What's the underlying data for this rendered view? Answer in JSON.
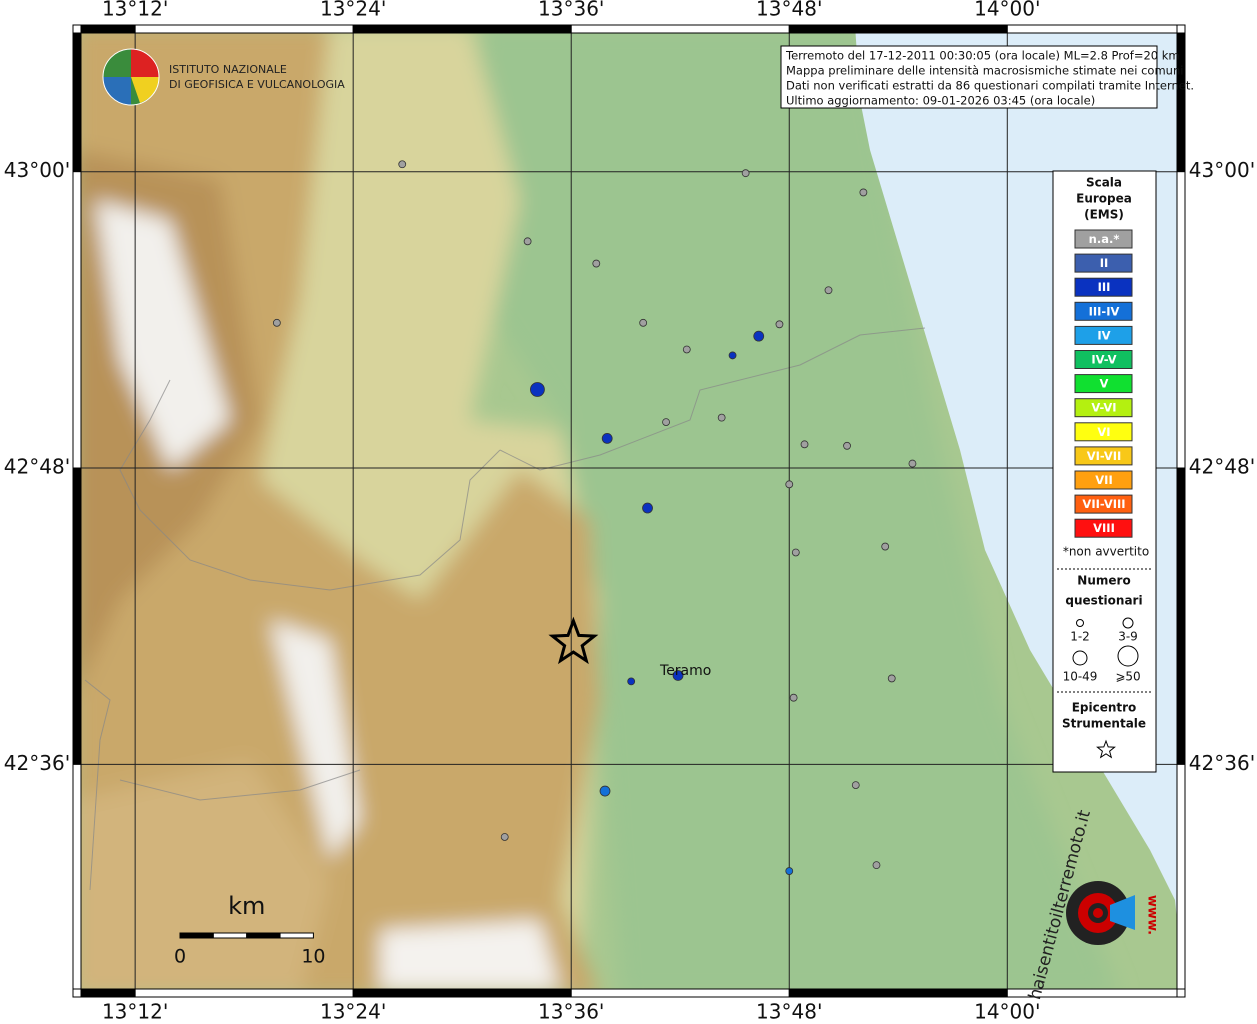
{
  "map": {
    "logo_text": [
      "ISTITUTO NAZIONALE",
      "DI GEOFISICA E VULCANOLOGIA"
    ],
    "info": [
      "Terremoto del 17-12-2011 00:30:05 (ora locale) ML=2.8 Prof=20 km",
      "Mappa preliminare delle intensità macrosismiche stimate nei comuni",
      "Dati non verificati estratti da 86 questionari compilati tramite Internet.",
      "Ultimo aggiornamento: 09-01-2026 03:45 (ora locale)"
    ],
    "lon_lim": [
      13.143,
      14.163
    ],
    "lat_lim": [
      42.443,
      43.099
    ],
    "lon_ticks": [
      {
        "value": 13.2,
        "label": "13°12'"
      },
      {
        "value": 13.4,
        "label": "13°24'"
      },
      {
        "value": 13.6,
        "label": "13°36'"
      },
      {
        "value": 13.8,
        "label": "13°48'"
      },
      {
        "value": 14.0,
        "label": "14°00'"
      }
    ],
    "lat_ticks": [
      {
        "value": 43.0,
        "label": "43°00'"
      },
      {
        "value": 42.8,
        "label": "42°48'"
      },
      {
        "value": 42.6,
        "label": "42°36'"
      }
    ],
    "legend": {
      "title": [
        "Scala",
        "Europea",
        "(EMS)"
      ],
      "classes": [
        {
          "label": "n.a.*",
          "color": "#a0a0a0"
        },
        {
          "label": "II",
          "color": "#3c5fae"
        },
        {
          "label": "III",
          "color": "#0a32c0"
        },
        {
          "label": "III-IV",
          "color": "#1470d8"
        },
        {
          "label": "IV",
          "color": "#1ea0e8"
        },
        {
          "label": "IV-V",
          "color": "#10c060"
        },
        {
          "label": "V",
          "color": "#10e030"
        },
        {
          "label": "V-VI",
          "color": "#b4f010"
        },
        {
          "label": "VI",
          "color": "#ffff10"
        },
        {
          "label": "VI-VII",
          "color": "#f8c818"
        },
        {
          "label": "VII",
          "color": "#ffa010"
        },
        {
          "label": "VII-VIII",
          "color": "#ff6010"
        },
        {
          "label": "VIII",
          "color": "#ff1010"
        }
      ],
      "note": "*non avvertito",
      "size_title": [
        "Numero",
        "questionari"
      ],
      "sizes": [
        "1-2",
        "3-9",
        "10-49",
        "⩾50"
      ],
      "epicenter_title": [
        "Epicentro",
        "Strumentale"
      ]
    },
    "points": [
      {
        "lon": 13.445,
        "lat": 43.005,
        "class": "n.a.*",
        "size": "1-2"
      },
      {
        "lon": 13.76,
        "lat": 42.999,
        "class": "n.a.*",
        "size": "1-2"
      },
      {
        "lon": 13.868,
        "lat": 42.986,
        "class": "n.a.*",
        "size": "1-2"
      },
      {
        "lon": 13.56,
        "lat": 42.953,
        "class": "n.a.*",
        "size": "1-2"
      },
      {
        "lon": 13.623,
        "lat": 42.938,
        "class": "n.a.*",
        "size": "1-2"
      },
      {
        "lon": 13.836,
        "lat": 42.92,
        "class": "n.a.*",
        "size": "1-2"
      },
      {
        "lon": 13.33,
        "lat": 42.898,
        "class": "n.a.*",
        "size": "1-2"
      },
      {
        "lon": 13.666,
        "lat": 42.898,
        "class": "n.a.*",
        "size": "1-2"
      },
      {
        "lon": 13.791,
        "lat": 42.897,
        "class": "n.a.*",
        "size": "1-2"
      },
      {
        "lon": 13.706,
        "lat": 42.88,
        "class": "n.a.*",
        "size": "1-2"
      },
      {
        "lon": 13.687,
        "lat": 42.831,
        "class": "n.a.*",
        "size": "1-2"
      },
      {
        "lon": 13.738,
        "lat": 42.834,
        "class": "n.a.*",
        "size": "1-2"
      },
      {
        "lon": 13.814,
        "lat": 42.816,
        "class": "n.a.*",
        "size": "1-2"
      },
      {
        "lon": 13.853,
        "lat": 42.815,
        "class": "n.a.*",
        "size": "1-2"
      },
      {
        "lon": 13.913,
        "lat": 42.803,
        "class": "n.a.*",
        "size": "1-2"
      },
      {
        "lon": 13.8,
        "lat": 42.789,
        "class": "n.a.*",
        "size": "1-2"
      },
      {
        "lon": 13.806,
        "lat": 42.743,
        "class": "n.a.*",
        "size": "1-2"
      },
      {
        "lon": 13.888,
        "lat": 42.747,
        "class": "n.a.*",
        "size": "1-2"
      },
      {
        "lon": 13.894,
        "lat": 42.658,
        "class": "n.a.*",
        "size": "1-2"
      },
      {
        "lon": 13.804,
        "lat": 42.645,
        "class": "n.a.*",
        "size": "1-2"
      },
      {
        "lon": 13.861,
        "lat": 42.586,
        "class": "n.a.*",
        "size": "1-2"
      },
      {
        "lon": 13.539,
        "lat": 42.551,
        "class": "n.a.*",
        "size": "1-2"
      },
      {
        "lon": 13.88,
        "lat": 42.532,
        "class": "n.a.*",
        "size": "1-2"
      },
      {
        "lon": 13.569,
        "lat": 42.853,
        "class": "III",
        "size": "10-49"
      },
      {
        "lon": 13.633,
        "lat": 42.82,
        "class": "III",
        "size": "3-9"
      },
      {
        "lon": 13.67,
        "lat": 42.773,
        "class": "III",
        "size": "3-9"
      },
      {
        "lon": 13.772,
        "lat": 42.889,
        "class": "III",
        "size": "3-9"
      },
      {
        "lon": 13.748,
        "lat": 42.876,
        "class": "III",
        "size": "1-2"
      },
      {
        "lon": 13.655,
        "lat": 42.656,
        "class": "III",
        "size": "1-2"
      },
      {
        "lon": 13.698,
        "lat": 42.66,
        "class": "III",
        "size": "3-9"
      },
      {
        "lon": 13.631,
        "lat": 42.582,
        "class": "III-IV",
        "size": "3-9"
      },
      {
        "lon": 13.8,
        "lat": 42.528,
        "class": "III-IV",
        "size": "1-2"
      }
    ],
    "epicenter": {
      "lon": 13.602,
      "lat": 42.682
    },
    "places": [
      {
        "name": "Teramo",
        "lon": 13.705,
        "lat": 42.663
      }
    ],
    "scale_bar": {
      "unit": "km",
      "ticks": [
        0,
        10
      ]
    },
    "watermark": {
      "prefix": "www.",
      "text": "haisentitoilterremoto.it"
    }
  }
}
